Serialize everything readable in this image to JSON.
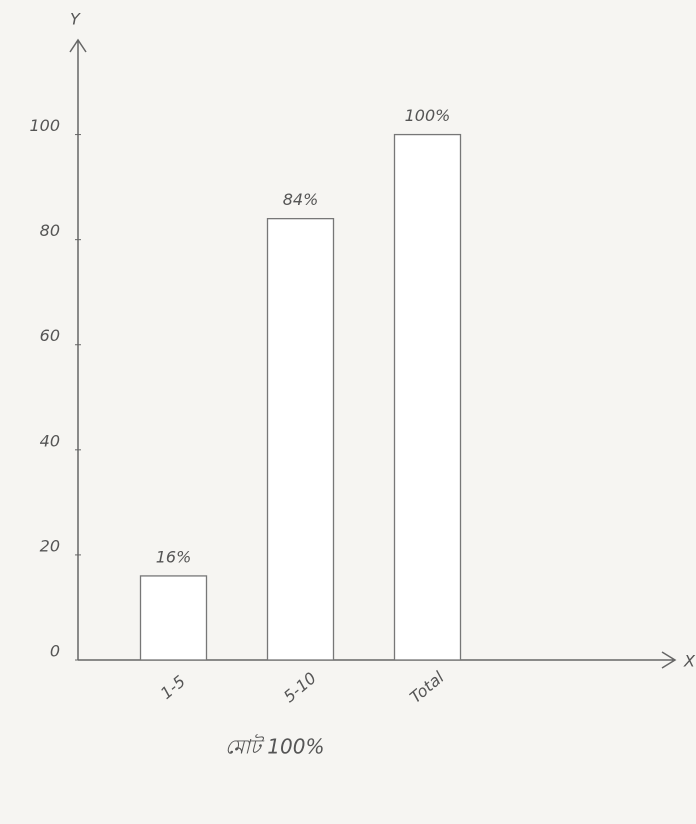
{
  "chart_data": {
    "type": "bar",
    "x_label": "X",
    "y_label": "Y",
    "categories": [
      "1-5",
      "5-10",
      "Total"
    ],
    "values": [
      16,
      84,
      100
    ],
    "value_labels": [
      "16%",
      "84%",
      "100%"
    ],
    "color": "#ffffff",
    "ylim": [
      0,
      118
    ],
    "yticks": [
      0,
      20,
      40,
      60,
      80,
      100
    ],
    "note": "মোট 100%"
  }
}
